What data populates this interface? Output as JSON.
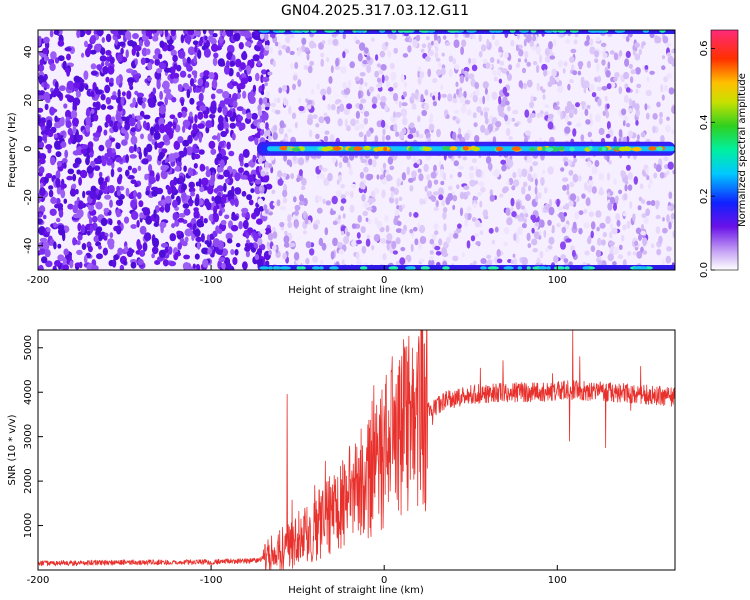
{
  "title": "GN04.2025.317.03.12.G11",
  "chart_data": [
    {
      "type": "heatmap",
      "xlabel": "Height of straight line (km)",
      "ylabel": "Frequency (Hz)",
      "xlim": [
        -200,
        168
      ],
      "ylim": [
        -50,
        49
      ],
      "xticks": [
        -200,
        -100,
        0,
        100
      ],
      "yticks": [
        -40,
        -20,
        0,
        20,
        40
      ],
      "colorbar": {
        "label": "Normalized spectral amplitude",
        "range": [
          0.0,
          0.65
        ],
        "ticks": [
          0.0,
          0.2,
          0.4,
          0.6
        ],
        "tick_labels": [
          "0.0",
          "0.2",
          "0.4",
          "0.6"
        ]
      },
      "signal_line_frequency_hz": 0,
      "noise_dominated_below_km": -70
    },
    {
      "type": "line",
      "xlabel": "Height of straight line (km)",
      "ylabel": "SNR (10 * v/v)",
      "xlim": [
        -200,
        168
      ],
      "ylim": [
        0,
        5400
      ],
      "xticks": [
        -200,
        -100,
        0,
        100
      ],
      "yticks": [
        1000,
        2000,
        3000,
        4000,
        5000
      ],
      "color": "#e8312c",
      "profile": {
        "x": [
          -200,
          -150,
          -100,
          -75,
          -65,
          -55,
          -45,
          -35,
          -25,
          -15,
          -5,
          0,
          5,
          15,
          25,
          35,
          50,
          70,
          90,
          110,
          130,
          150,
          168
        ],
        "y": [
          150,
          170,
          180,
          210,
          320,
          550,
          800,
          1100,
          1500,
          1900,
          2300,
          2700,
          3000,
          3300,
          3600,
          3800,
          3950,
          4000,
          4000,
          4050,
          4000,
          3950,
          3900
        ]
      },
      "spikes": [
        {
          "x": -56,
          "y": 3950
        },
        {
          "x": -34,
          "y": 2450
        },
        {
          "x": -7,
          "y": 3800
        },
        {
          "x": -6,
          "y": 4150
        },
        {
          "x": 109,
          "y": 5400
        },
        {
          "x": 107,
          "y": 2900
        },
        {
          "x": 113,
          "y": 4800
        },
        {
          "x": 128,
          "y": 2750
        }
      ]
    }
  ]
}
